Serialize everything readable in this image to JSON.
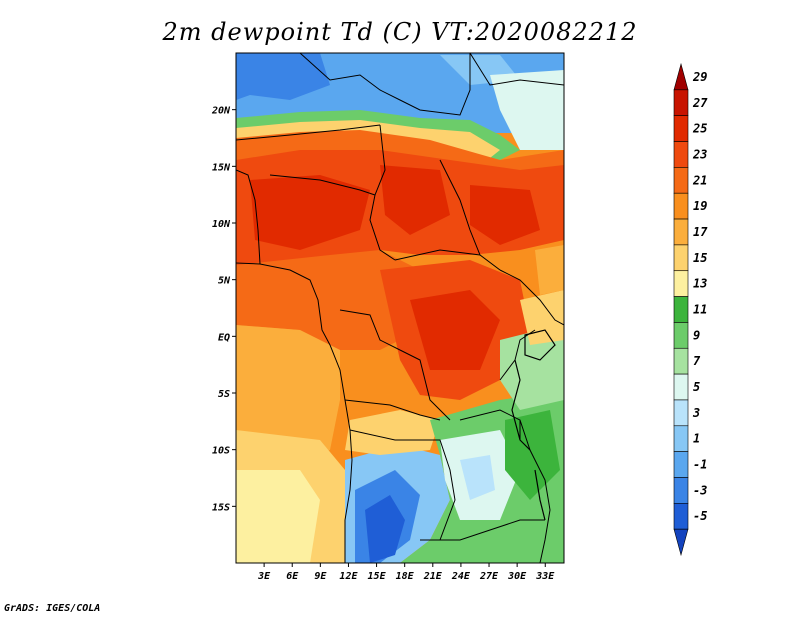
{
  "title": "2m dewpoint Td (C) VT:2020082212",
  "footer": "GrADS: IGES/COLA",
  "map": {
    "lon_ticks": [
      "3E",
      "6E",
      "9E",
      "12E",
      "15E",
      "18E",
      "21E",
      "24E",
      "27E",
      "30E",
      "33E"
    ],
    "lat_ticks": [
      "20N",
      "15N",
      "10N",
      "5N",
      "EQ",
      "5S",
      "10S",
      "15S"
    ],
    "lon_tick_values": [
      3,
      6,
      9,
      12,
      15,
      18,
      21,
      24,
      27,
      30,
      33
    ],
    "lat_tick_values": [
      20,
      15,
      10,
      5,
      0,
      -5,
      -10,
      -15
    ],
    "lon_range": [
      0,
      35
    ],
    "lat_range": [
      -20,
      25
    ]
  },
  "colorbar": {
    "labels": [
      "29",
      "27",
      "25",
      "23",
      "21",
      "19",
      "17",
      "15",
      "13",
      "11",
      "9",
      "7",
      "5",
      "3",
      "1",
      "-1",
      "-3",
      "-5"
    ],
    "colors": [
      "#a00000",
      "#c81400",
      "#e12a00",
      "#ef4a0f",
      "#f56a16",
      "#f98f1e",
      "#fbae3c",
      "#fdd26e",
      "#fdf0a0",
      "#3cb43c",
      "#6ccc6a",
      "#a6e2a0",
      "#ddf7f0",
      "#b9e3fb",
      "#87c7f5",
      "#5aa7ef",
      "#3a84e6",
      "#1f5ed6",
      "#1343be"
    ],
    "units": "C"
  }
}
